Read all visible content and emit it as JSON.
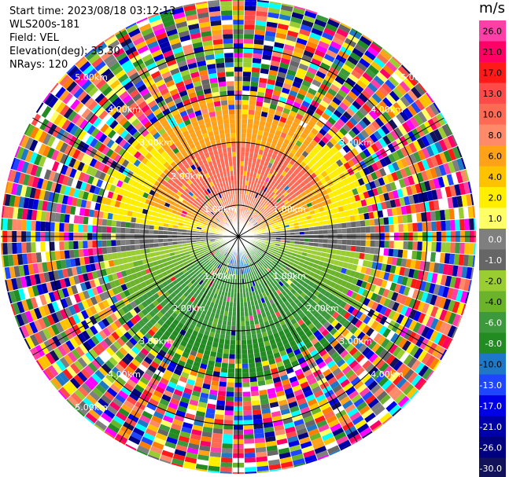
{
  "header": {
    "start_time": "Start time: 2023/08/18 03:12:13",
    "instrument": "WLS200s-181",
    "field": "Field: VEL",
    "elevation": "Elevation(deg): 35.30",
    "nrays": "NRays: 120"
  },
  "colorbar": {
    "unit": "m/s",
    "ticks": [
      "26.0",
      "21.0",
      "17.0",
      "13.0",
      "10.0",
      "8.0",
      "6.0",
      "4.0",
      "2.0",
      "1.0",
      "0.0",
      "-1.0",
      "-2.0",
      "-4.0",
      "-6.0",
      "-8.0",
      "-10.0",
      "-13.0",
      "-17.0",
      "-21.0",
      "-26.0",
      "-30.0"
    ],
    "colors": [
      "#ff3fa8",
      "#ff0066",
      "#ff1a1a",
      "#ff4a4a",
      "#ff6a55",
      "#ff8a6a",
      "#ffa21a",
      "#ffc200",
      "#ffee00",
      "#ffff66",
      "#7f7f7f",
      "#666666",
      "#9acd32",
      "#6ab32a",
      "#3c9a3c",
      "#228b22",
      "#1e78c8",
      "#1e46ff",
      "#0000e6",
      "#0000aa",
      "#000080",
      "#12125a"
    ]
  },
  "chart_data": {
    "type": "heatmap",
    "projection": "polar PPI",
    "field": "VEL",
    "units": "m/s",
    "n_rays": 120,
    "range_ring_labels": [
      "1.00km",
      "2.00km",
      "3.00km",
      "4.00km",
      "5.00km"
    ],
    "color_range": [
      -30.0,
      26.0
    ],
    "pattern": {
      "north_sector": "8.0 to 13.0 (salmon/orange)",
      "east_west_horizontal": "0.0 (gray)",
      "south_sector": "-6.0 to -10.0 (green/blue)",
      "outer_rings": "noisy, full range"
    }
  }
}
